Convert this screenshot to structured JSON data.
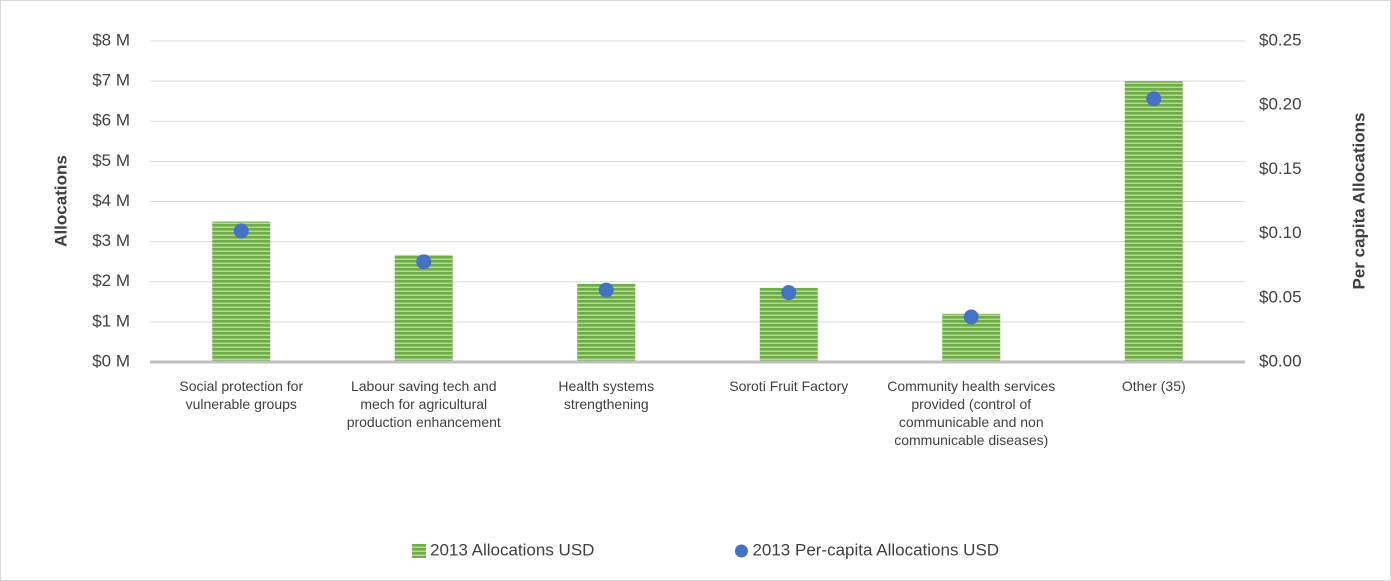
{
  "chart_data": {
    "type": "bar",
    "categories": [
      "Social protection for vulnerable groups",
      "Labour saving tech and mech for agricultural production enhancement",
      "Health systems strengthening",
      "Soroti Fruit Factory",
      "Community health services provided (control of communicable and non communicable diseases)",
      "Other (35)"
    ],
    "ylabel": "Allocations",
    "y2label": "Per capita Allocations",
    "series": [
      {
        "name": "2013 Allocations USD",
        "type": "bar",
        "color": "#70ad47",
        "values": [
          3.5,
          2.67,
          1.95,
          1.85,
          1.2,
          7.0
        ]
      },
      {
        "name": "2013 Per-capita Allocations USD",
        "type": "scatter",
        "axis": "y2",
        "color": "#4472c4",
        "values": [
          0.102,
          0.078,
          0.056,
          0.054,
          0.035,
          0.205
        ]
      }
    ],
    "ylim": [
      0,
      8
    ],
    "yticks": [
      {
        "value": 0,
        "label": "$0 M"
      },
      {
        "value": 1,
        "label": "$1 M"
      },
      {
        "value": 2,
        "label": "$2 M"
      },
      {
        "value": 3,
        "label": "$3 M"
      },
      {
        "value": 4,
        "label": "$4 M"
      },
      {
        "value": 5,
        "label": "$5 M"
      },
      {
        "value": 6,
        "label": "$6 M"
      },
      {
        "value": 7,
        "label": "$7 M"
      },
      {
        "value": 8,
        "label": "$8 M"
      }
    ],
    "y2lim": [
      0,
      0.25
    ],
    "y2ticks": [
      {
        "value": 0,
        "label": "$0.00"
      },
      {
        "value": 0.05,
        "label": "$0.05"
      },
      {
        "value": 0.1,
        "label": "$0.10"
      },
      {
        "value": 0.15,
        "label": "$0.15"
      },
      {
        "value": 0.2,
        "label": "$0.20"
      },
      {
        "value": 0.25,
        "label": "$0.25"
      }
    ],
    "grid": true,
    "legend": "bottom"
  }
}
